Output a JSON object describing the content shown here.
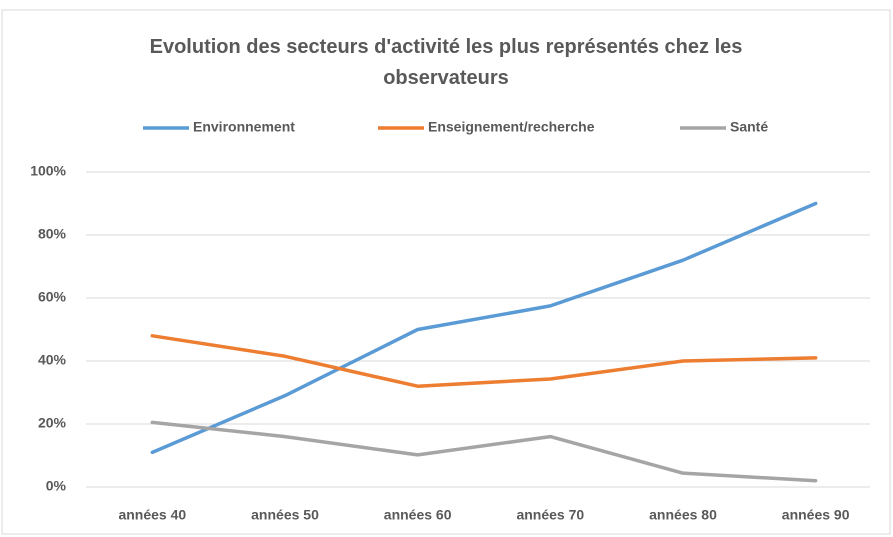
{
  "chart_data": {
    "type": "line",
    "title": "Evolution des secteurs d'activité les plus représentés chez les observateurs",
    "categories": [
      "années 40",
      "années 50",
      "années 60",
      "années 70",
      "années 80",
      "années 90"
    ],
    "series": [
      {
        "name": "Environnement",
        "color": "#5b9bd5",
        "values": [
          11,
          29,
          50,
          57.5,
          72,
          90
        ]
      },
      {
        "name": "Enseignement/recherche",
        "color": "#ed7d31",
        "values": [
          48,
          41.5,
          32,
          34.3,
          40,
          41
        ]
      },
      {
        "name": "Santé",
        "color": "#a5a5a5",
        "values": [
          20.5,
          16,
          10.2,
          16,
          4.4,
          2
        ]
      }
    ],
    "ylim": [
      0,
      100
    ],
    "yticks": [
      {
        "value": 0,
        "label": "0%"
      },
      {
        "value": 20,
        "label": "20%"
      },
      {
        "value": 40,
        "label": "40%"
      },
      {
        "value": 60,
        "label": "60%"
      },
      {
        "value": 80,
        "label": "80%"
      },
      {
        "value": 100,
        "label": "100%"
      }
    ],
    "grid": true,
    "legend": "top"
  }
}
